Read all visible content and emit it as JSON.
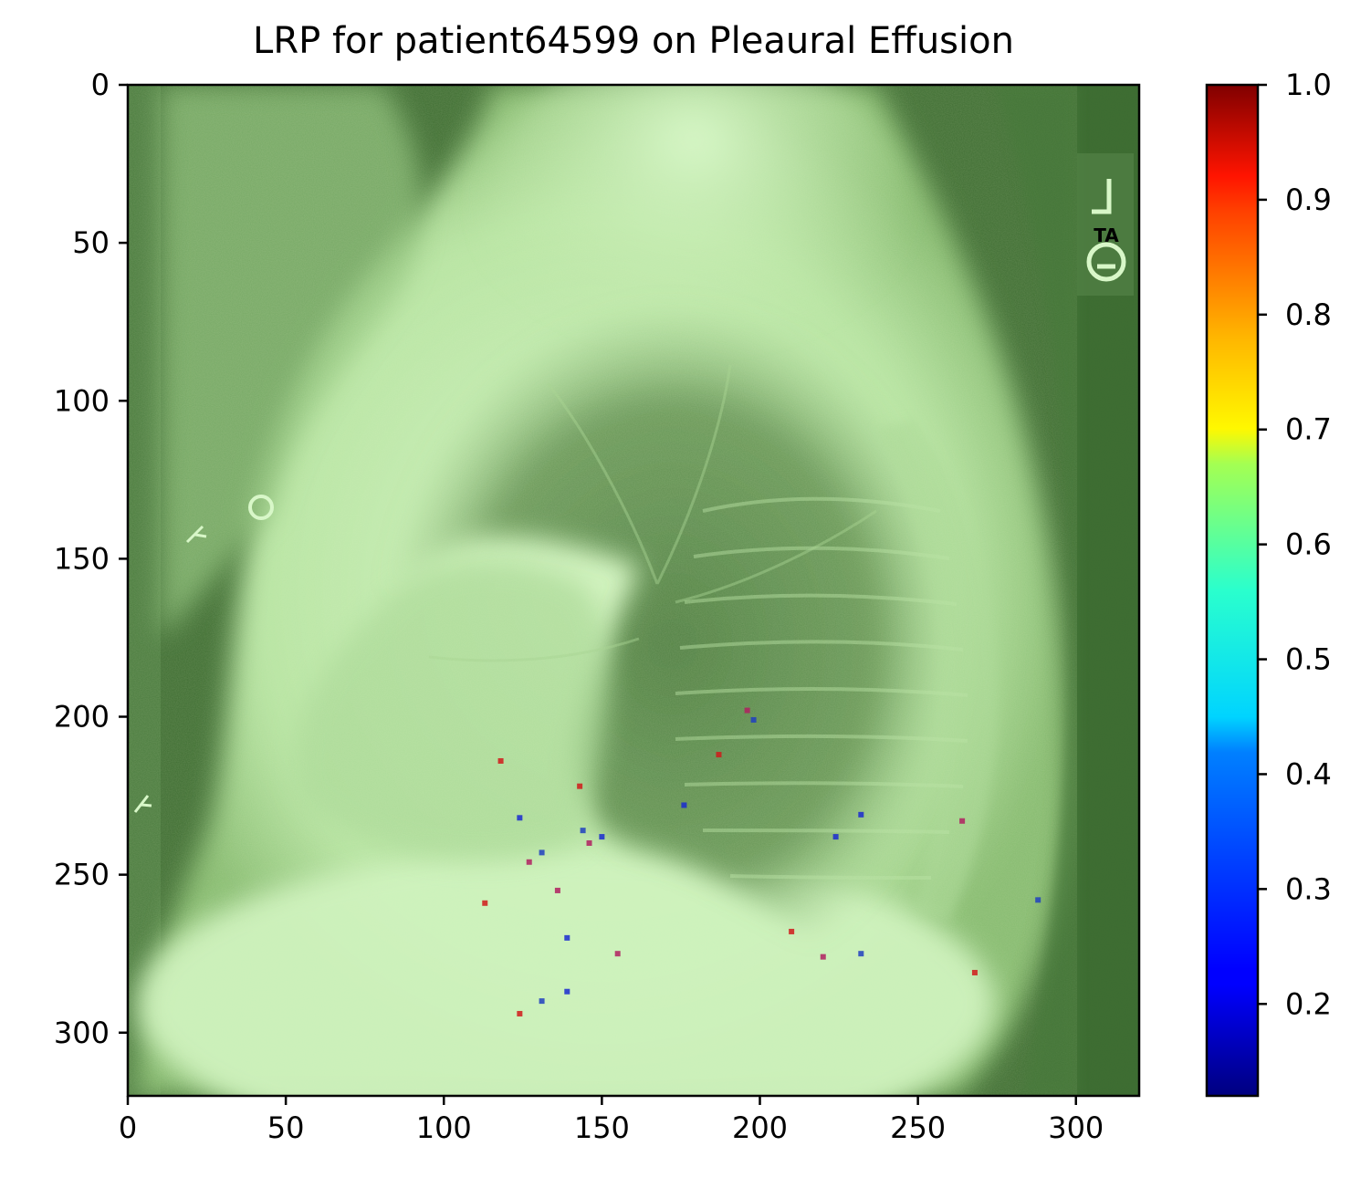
{
  "chart_data": {
    "type": "heatmap",
    "title": "LRP for patient64599 on Pleaural Effusion",
    "xlabel": "",
    "ylabel": "",
    "image_extent": {
      "x": [
        0,
        320
      ],
      "y": [
        0,
        320
      ]
    },
    "xticks": [
      0,
      50,
      100,
      150,
      200,
      250,
      300
    ],
    "yticks": [
      0,
      50,
      100,
      150,
      200,
      250,
      300
    ],
    "y_inverted": true,
    "image_overlay_label": "TA",
    "colorbar": {
      "colormap": "jet",
      "range": [
        0.12,
        1.0
      ],
      "ticks": [
        0.2,
        0.3,
        0.4,
        0.5,
        0.6,
        0.7,
        0.8,
        0.9,
        1.0
      ],
      "tick_labels": [
        "0.2",
        "0.3",
        "0.4",
        "0.5",
        "0.6",
        "0.7",
        "0.8",
        "0.9",
        "1.0"
      ]
    },
    "background_color": "#3f6e33",
    "overlay_color": "#c8f2b8",
    "high_relevance_spots": [
      {
        "x": 118,
        "y": 214
      },
      {
        "x": 124,
        "y": 232
      },
      {
        "x": 127,
        "y": 246
      },
      {
        "x": 131,
        "y": 243
      },
      {
        "x": 113,
        "y": 259
      },
      {
        "x": 139,
        "y": 270
      },
      {
        "x": 146,
        "y": 240
      },
      {
        "x": 144,
        "y": 236
      },
      {
        "x": 143,
        "y": 222
      },
      {
        "x": 150,
        "y": 238
      },
      {
        "x": 155,
        "y": 275
      },
      {
        "x": 131,
        "y": 290
      },
      {
        "x": 124,
        "y": 294
      },
      {
        "x": 139,
        "y": 287
      },
      {
        "x": 196,
        "y": 198
      },
      {
        "x": 198,
        "y": 201
      },
      {
        "x": 187,
        "y": 212
      },
      {
        "x": 176,
        "y": 228
      },
      {
        "x": 220,
        "y": 276
      },
      {
        "x": 232,
        "y": 275
      },
      {
        "x": 210,
        "y": 268
      },
      {
        "x": 224,
        "y": 238
      },
      {
        "x": 264,
        "y": 233
      },
      {
        "x": 288,
        "y": 258
      },
      {
        "x": 268,
        "y": 281
      },
      {
        "x": 232,
        "y": 231
      },
      {
        "x": 136,
        "y": 255
      }
    ]
  }
}
